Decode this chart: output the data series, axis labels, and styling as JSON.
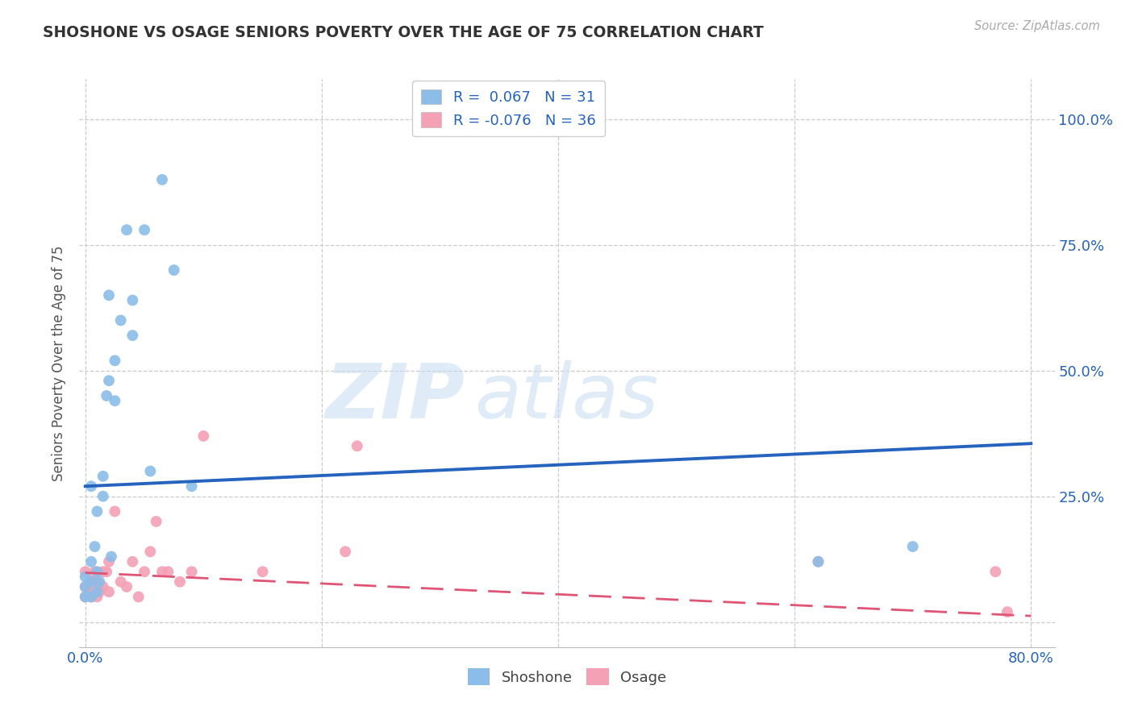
{
  "title": "SHOSHONE VS OSAGE SENIORS POVERTY OVER THE AGE OF 75 CORRELATION CHART",
  "source": "Source: ZipAtlas.com",
  "ylabel": "Seniors Poverty Over the Age of 75",
  "xlim": [
    -0.005,
    0.82
  ],
  "ylim": [
    -0.05,
    1.08
  ],
  "xticks": [
    0.0,
    0.2,
    0.4,
    0.6,
    0.8
  ],
  "yticks": [
    0.0,
    0.25,
    0.5,
    0.75,
    1.0
  ],
  "shoshone_color": "#8BBDE8",
  "osage_color": "#F4A0B5",
  "shoshone_line_color": "#2563BE",
  "osage_line_color": "#E05575",
  "legend_r_shoshone": "0.067",
  "legend_n_shoshone": "31",
  "legend_r_osage": "-0.076",
  "legend_n_osage": "36",
  "shoshone_x": [
    0.0,
    0.0,
    0.0,
    0.005,
    0.005,
    0.005,
    0.005,
    0.008,
    0.01,
    0.01,
    0.01,
    0.012,
    0.015,
    0.015,
    0.018,
    0.02,
    0.02,
    0.022,
    0.025,
    0.025,
    0.03,
    0.035,
    0.04,
    0.04,
    0.05,
    0.055,
    0.065,
    0.075,
    0.09,
    0.62,
    0.7
  ],
  "shoshone_y": [
    0.05,
    0.07,
    0.09,
    0.05,
    0.08,
    0.12,
    0.27,
    0.15,
    0.06,
    0.1,
    0.22,
    0.08,
    0.25,
    0.29,
    0.45,
    0.48,
    0.65,
    0.13,
    0.44,
    0.52,
    0.6,
    0.78,
    0.57,
    0.64,
    0.78,
    0.3,
    0.88,
    0.7,
    0.27,
    0.12,
    0.15
  ],
  "osage_x": [
    0.0,
    0.0,
    0.0,
    0.003,
    0.005,
    0.005,
    0.007,
    0.008,
    0.008,
    0.01,
    0.01,
    0.012,
    0.015,
    0.015,
    0.018,
    0.02,
    0.02,
    0.025,
    0.03,
    0.035,
    0.04,
    0.045,
    0.05,
    0.055,
    0.06,
    0.065,
    0.07,
    0.08,
    0.09,
    0.1,
    0.15,
    0.22,
    0.23,
    0.62,
    0.77,
    0.78
  ],
  "osage_y": [
    0.05,
    0.07,
    0.1,
    0.06,
    0.05,
    0.08,
    0.07,
    0.08,
    0.1,
    0.05,
    0.08,
    0.06,
    0.07,
    0.1,
    0.1,
    0.06,
    0.12,
    0.22,
    0.08,
    0.07,
    0.12,
    0.05,
    0.1,
    0.14,
    0.2,
    0.1,
    0.1,
    0.08,
    0.1,
    0.37,
    0.1,
    0.14,
    0.35,
    0.12,
    0.1,
    0.02
  ],
  "shoshone_trend_y_start": 0.27,
  "shoshone_trend_y_end": 0.355,
  "osage_trend_y_start": 0.098,
  "osage_trend_y_end": 0.012,
  "grid_color": "#CCCCCC",
  "background_color": "#FFFFFF",
  "title_color": "#333333",
  "axis_label_color": "#555555",
  "tick_color_x": "#2563BE",
  "tick_color_y": "#2563BE",
  "legend_text_color": "#2563BE",
  "marker_size": 100
}
